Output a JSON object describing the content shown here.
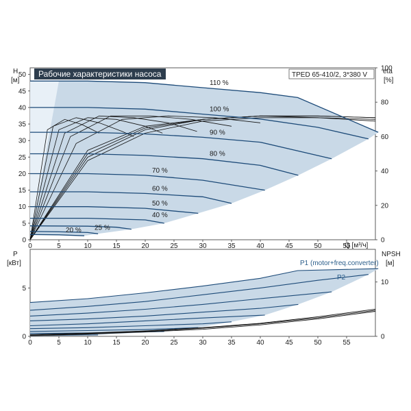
{
  "chart_data": [
    {
      "type": "line",
      "title": "Рабочие характеристики насоса",
      "model": "TPED 65-410/2, 3*380 V",
      "xlabel": "Q [м³/ч]",
      "ylabel_left": [
        "H",
        "[м]"
      ],
      "ylabel_right": [
        "eta",
        "[%]"
      ],
      "xlim": [
        0,
        60
      ],
      "ylim_left": [
        0,
        52
      ],
      "ylim_right": [
        0,
        100
      ],
      "x_ticks": [
        "0",
        "5",
        "10",
        "15",
        "20",
        "25",
        "30",
        "35",
        "40",
        "45",
        "50",
        "55"
      ],
      "y_ticks_left": [
        "0",
        "5",
        "10",
        "15",
        "20",
        "25",
        "30",
        "35",
        "40",
        "45",
        "50"
      ],
      "y_ticks_right": [
        "0",
        "20",
        "40",
        "60",
        "80",
        "100"
      ],
      "head_series": [
        {
          "name": "110 %",
          "x": [
            0,
            10,
            20,
            30,
            40,
            46.5,
            60.5
          ],
          "y": [
            48,
            48,
            47.5,
            46,
            44.5,
            43,
            32.5
          ]
        },
        {
          "name": "100 %",
          "x": [
            0,
            10,
            20,
            30,
            40,
            50,
            58.8
          ],
          "y": [
            40,
            40,
            39.5,
            38,
            36.5,
            34,
            30.5
          ]
        },
        {
          "name": "90 %",
          "x": [
            0,
            10,
            20,
            30,
            40,
            52.4
          ],
          "y": [
            32.5,
            32.5,
            32,
            31,
            29.5,
            24.5
          ]
        },
        {
          "name": "80 %",
          "x": [
            0,
            10,
            20,
            30,
            40,
            46.6
          ],
          "y": [
            26,
            26,
            25.5,
            24.5,
            22.5,
            19.5
          ]
        },
        {
          "name": "70 %",
          "x": [
            0,
            10,
            20,
            30,
            40.8
          ],
          "y": [
            20,
            20,
            19.5,
            18,
            15
          ]
        },
        {
          "name": "60 %",
          "x": [
            0,
            10,
            20,
            30,
            35
          ],
          "y": [
            14.5,
            14.5,
            14,
            13,
            11
          ]
        },
        {
          "name": "50 %",
          "x": [
            0,
            10,
            20,
            29.2
          ],
          "y": [
            10,
            10,
            9.5,
            8
          ]
        },
        {
          "name": "40 %",
          "x": [
            0,
            10,
            20,
            23.3
          ],
          "y": [
            6.5,
            6.5,
            6,
            5
          ]
        },
        {
          "name": "",
          "x": [
            0,
            10,
            15,
            17.6
          ],
          "y": [
            4.2,
            4.1,
            3.8,
            3.2
          ]
        },
        {
          "name": "25 %",
          "x": [
            0,
            5,
            10,
            11.8
          ],
          "y": [
            2.5,
            2.4,
            2.2,
            1.8
          ]
        },
        {
          "name": "20 %",
          "x": [
            0,
            5,
            9.4
          ],
          "y": [
            1.6,
            1.5,
            1.2
          ]
        }
      ],
      "eta_series": [
        {
          "x": [
            0,
            10,
            20,
            30,
            40,
            50,
            60
          ],
          "y": [
            0,
            48,
            64,
            70,
            72,
            71,
            70
          ]
        },
        {
          "x": [
            0,
            10,
            20,
            30,
            40,
            50,
            60
          ],
          "y": [
            0,
            50,
            65,
            70,
            72,
            72,
            71
          ]
        },
        {
          "x": [
            0,
            10,
            20,
            30,
            40,
            50,
            60
          ],
          "y": [
            0,
            52,
            66,
            70,
            72,
            72,
            71
          ]
        },
        {
          "x": [
            0,
            10,
            20,
            30,
            40,
            50,
            60
          ],
          "y": [
            0,
            46,
            62,
            69,
            71,
            71,
            69
          ]
        },
        {
          "x": [
            0,
            8,
            16,
            24,
            32,
            40
          ],
          "y": [
            0,
            56,
            70,
            72,
            71,
            68
          ]
        },
        {
          "x": [
            0,
            7,
            14,
            21,
            28,
            35
          ],
          "y": [
            0,
            60,
            72,
            72,
            70,
            66
          ]
        },
        {
          "x": [
            0,
            6,
            12,
            18,
            24,
            29
          ],
          "y": [
            0,
            62,
            72,
            71,
            68,
            63
          ]
        },
        {
          "x": [
            0,
            5,
            10,
            15,
            20,
            23
          ],
          "y": [
            0,
            64,
            71,
            70,
            66,
            62
          ]
        },
        {
          "x": [
            0,
            4,
            8,
            12,
            16,
            18
          ],
          "y": [
            0,
            66,
            71,
            68,
            63,
            60
          ]
        },
        {
          "x": [
            0,
            3,
            6,
            9,
            12
          ],
          "y": [
            0,
            64,
            70,
            67,
            62
          ]
        }
      ]
    },
    {
      "type": "line",
      "ylabel_left": [
        "P",
        "[кВт]"
      ],
      "ylabel_right": [
        "NPSH",
        "[м]"
      ],
      "xlim": [
        0,
        60
      ],
      "ylim_left": [
        0,
        9
      ],
      "ylim_right": [
        0,
        16
      ],
      "y_ticks_left": [
        "0",
        "5"
      ],
      "y_ticks_right": [
        "0",
        "10"
      ],
      "legend": [
        "P1 (motor+freq.converter)",
        "P2"
      ],
      "power_series": [
        {
          "name": "110 %",
          "x": [
            0,
            10,
            20,
            30,
            40,
            46.5,
            60.5
          ],
          "y": [
            3.5,
            3.9,
            4.5,
            5.2,
            6.0,
            6.8,
            7.0
          ]
        },
        {
          "name": "100 %",
          "x": [
            0,
            10,
            20,
            30,
            40,
            50,
            58.8
          ],
          "y": [
            2.7,
            3.1,
            3.6,
            4.3,
            5.0,
            5.8,
            6.4
          ]
        },
        {
          "name": "90 %",
          "x": [
            0,
            10,
            20,
            30,
            40,
            52.4
          ],
          "y": [
            2.1,
            2.4,
            2.8,
            3.3,
            3.9,
            4.6
          ]
        },
        {
          "name": "80 %",
          "x": [
            0,
            10,
            20,
            30,
            40,
            46.6
          ],
          "y": [
            1.6,
            1.8,
            2.1,
            2.5,
            2.9,
            3.3
          ]
        },
        {
          "name": "70 %",
          "x": [
            0,
            10,
            20,
            30,
            40.8
          ],
          "y": [
            1.1,
            1.3,
            1.6,
            1.9,
            2.2
          ]
        },
        {
          "name": "60 %",
          "x": [
            0,
            10,
            20,
            30,
            35
          ],
          "y": [
            0.8,
            0.9,
            1.1,
            1.3,
            1.5
          ]
        },
        {
          "name": "50 %",
          "x": [
            0,
            10,
            20,
            29.2
          ],
          "y": [
            0.5,
            0.6,
            0.7,
            0.9
          ]
        },
        {
          "name": "40 %",
          "x": [
            0,
            10,
            20,
            23.3
          ],
          "y": [
            0.3,
            0.35,
            0.45,
            0.5
          ]
        },
        {
          "name": "25 %",
          "x": [
            0,
            5,
            11.8
          ],
          "y": [
            0.1,
            0.12,
            0.15
          ]
        }
      ],
      "npsh_series": [
        {
          "x": [
            0,
            10,
            20,
            30,
            40,
            50,
            60
          ],
          "y": [
            0.3,
            0.6,
            1.0,
            1.6,
            2.4,
            3.6,
            5.0
          ]
        },
        {
          "x": [
            0,
            10,
            20,
            30,
            40,
            50,
            60
          ],
          "y": [
            0.2,
            0.5,
            0.9,
            1.5,
            2.3,
            3.4,
            4.8
          ]
        },
        {
          "x": [
            0,
            10,
            20,
            30,
            40,
            50,
            60
          ],
          "y": [
            0.1,
            0.4,
            0.8,
            1.3,
            2.1,
            3.2,
            4.6
          ]
        }
      ]
    }
  ],
  "colors": {
    "accent": "#1c4a78",
    "fill": "#c9d9e7",
    "fill_light": "#e8f0f7",
    "title_bg": "#2d3d4d",
    "legend": "#2a5d8a"
  }
}
